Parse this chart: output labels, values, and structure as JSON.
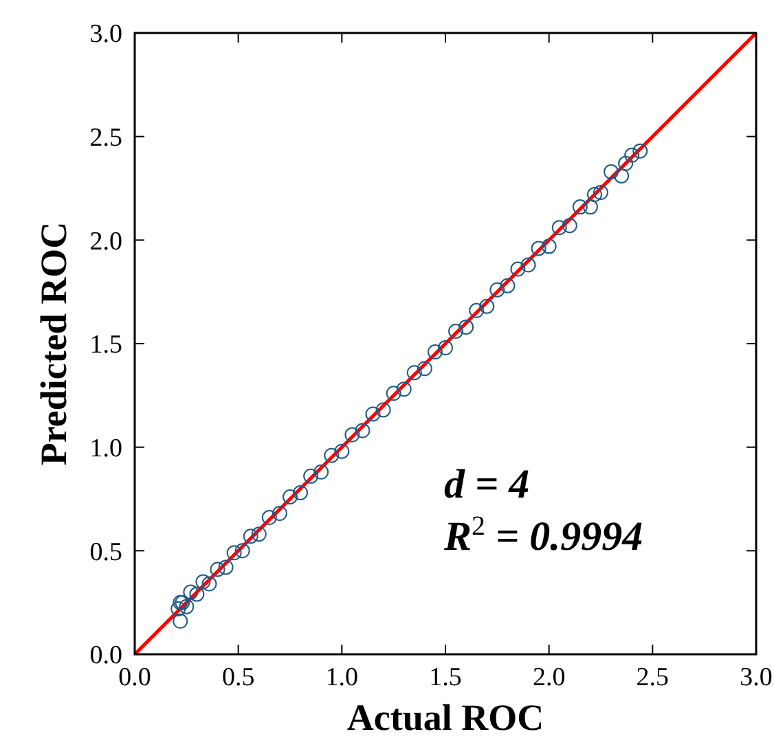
{
  "chart_data": {
    "type": "scatter",
    "xlabel": "Actual ROC",
    "ylabel": "Predicted ROC",
    "xlim": [
      0,
      3
    ],
    "ylim": [
      0,
      3
    ],
    "xticks": [
      {
        "value": 0,
        "label": "0.0"
      },
      0.5,
      {
        "value": 1,
        "label": "1.0"
      },
      1.5,
      {
        "value": 2,
        "label": "2.0"
      },
      2.5,
      {
        "value": 3,
        "label": "3.0"
      }
    ],
    "yticks": [
      {
        "value": 0,
        "label": "0.0"
      },
      0.5,
      {
        "value": 1,
        "label": "1.0"
      },
      1.5,
      {
        "value": 2,
        "label": "2.0"
      },
      2.5,
      {
        "value": 3,
        "label": "3.0"
      }
    ],
    "marker": "circle",
    "annotations": [
      "d = 4",
      "R$^{2}$ = 0.9994"
    ],
    "series": [
      {
        "color": "#1f5a85",
        "x": [
          0.21,
          0.22,
          0.22,
          0.23,
          0.25,
          0.27,
          0.3,
          0.33,
          0.36,
          0.4,
          0.44,
          0.48,
          0.52,
          0.56,
          0.6,
          0.65,
          0.7,
          0.75,
          0.8,
          0.85,
          0.9,
          0.95,
          1.0,
          1.05,
          1.1,
          1.15,
          1.2,
          1.25,
          1.3,
          1.35,
          1.4,
          1.45,
          1.5,
          1.55,
          1.6,
          1.65,
          1.7,
          1.75,
          1.8,
          1.85,
          1.9,
          1.95,
          2.0,
          2.05,
          2.1,
          2.15,
          2.2,
          2.22,
          2.25,
          2.3,
          2.35,
          2.37,
          2.4,
          2.44
        ],
        "values": [
          0.22,
          0.25,
          0.16,
          0.25,
          0.23,
          0.3,
          0.29,
          0.35,
          0.34,
          0.41,
          0.42,
          0.49,
          0.5,
          0.57,
          0.58,
          0.66,
          0.68,
          0.76,
          0.78,
          0.86,
          0.88,
          0.96,
          0.98,
          1.06,
          1.08,
          1.16,
          1.18,
          1.26,
          1.28,
          1.36,
          1.38,
          1.46,
          1.48,
          1.56,
          1.58,
          1.66,
          1.68,
          1.76,
          1.78,
          1.86,
          1.88,
          1.96,
          1.97,
          2.06,
          2.07,
          2.16,
          2.16,
          2.22,
          2.23,
          2.33,
          2.31,
          2.37,
          2.41,
          2.43
        ]
      },
      {
        "type": "line",
        "color": "#ff0000",
        "marker": "none",
        "line_style": "solid",
        "x": [
          0,
          3
        ],
        "values": [
          0,
          3
        ]
      }
    ]
  }
}
